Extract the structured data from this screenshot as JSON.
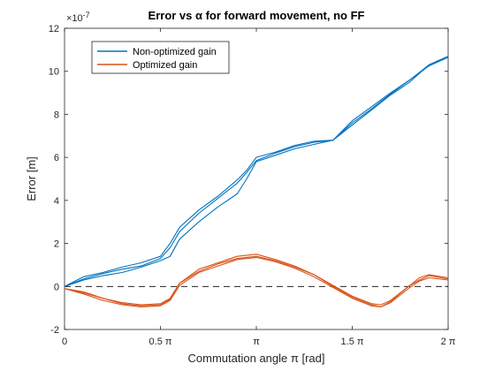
{
  "chart_data": {
    "type": "line",
    "title": "Error vs α for forward movement, no FF",
    "xlabel": "Commutation angle π [rad]",
    "ylabel": "Error [m]",
    "exponent_label": "×10",
    "exponent_power": "-7",
    "xlim": [
      0,
      2
    ],
    "ylim": [
      -2,
      12
    ],
    "xticks": [
      {
        "value": 0,
        "label": "0"
      },
      {
        "value": 0.5,
        "label": "0.5 π"
      },
      {
        "value": 1,
        "label": "π"
      },
      {
        "value": 1.5,
        "label": "1.5 π"
      },
      {
        "value": 2,
        "label": "2 π"
      }
    ],
    "yticks": [
      {
        "value": -2,
        "label": "-2"
      },
      {
        "value": 0,
        "label": "0"
      },
      {
        "value": 2,
        "label": "2"
      },
      {
        "value": 4,
        "label": "4"
      },
      {
        "value": 6,
        "label": "6"
      },
      {
        "value": 8,
        "label": "8"
      },
      {
        "value": 10,
        "label": "10"
      },
      {
        "value": 12,
        "label": "12"
      }
    ],
    "reference_line": {
      "y": 0,
      "style": "dashed",
      "color": "#000000"
    },
    "legend_position": "top-left",
    "series": [
      {
        "name": "Non-optimized gain",
        "color": "#0072BD",
        "x": [
          0,
          0.1,
          0.2,
          0.3,
          0.4,
          0.5,
          0.55,
          0.6,
          0.7,
          0.8,
          0.9,
          0.95,
          1.0,
          1.1,
          1.2,
          1.3,
          1.4,
          1.5,
          1.6,
          1.7,
          1.8,
          1.9,
          2.0
        ],
        "values": [
          0.0,
          0.4,
          0.6,
          0.8,
          1.0,
          1.3,
          1.9,
          2.6,
          3.4,
          4.1,
          4.8,
          5.3,
          5.9,
          6.2,
          6.5,
          6.7,
          6.8,
          7.6,
          8.3,
          9.0,
          9.6,
          10.3,
          10.7
        ],
        "traces": [
          {
            "name": "Non-optimized gain trace 1",
            "offsets": [
              0,
              0.05,
              0.05,
              0.1,
              0.1,
              0.1,
              0.1,
              0.15,
              0.15,
              0.1,
              0.15,
              0.1,
              0.1,
              0.05,
              0.05,
              0.05,
              0.0,
              0.1,
              0.05,
              0.0,
              0.0,
              0.0,
              0.0
            ]
          },
          {
            "name": "Non-optimized gain trace 2",
            "offsets": [
              0,
              -0.05,
              0.0,
              0.0,
              -0.05,
              0.0,
              -0.1,
              -0.05,
              0.0,
              0.0,
              0.0,
              0.0,
              -0.05,
              0.0,
              0.0,
              0.0,
              0.0,
              0.0,
              -0.05,
              -0.05,
              0.0,
              -0.05,
              -0.05
            ]
          },
          {
            "name": "Non-optimized gain trace 3",
            "offsets": [
              0,
              -0.1,
              -0.1,
              -0.15,
              -0.1,
              -0.1,
              -0.5,
              -0.4,
              -0.4,
              -0.4,
              -0.5,
              -0.3,
              -0.1,
              -0.1,
              -0.1,
              -0.1,
              0.0,
              -0.1,
              -0.1,
              -0.1,
              -0.1,
              0.0,
              0.0
            ]
          }
        ]
      },
      {
        "name": "Optimized gain",
        "color": "#D95319",
        "x": [
          0,
          0.1,
          0.2,
          0.3,
          0.4,
          0.5,
          0.55,
          0.6,
          0.7,
          0.8,
          0.9,
          1.0,
          1.1,
          1.2,
          1.3,
          1.4,
          1.5,
          1.6,
          1.65,
          1.7,
          1.8,
          1.85,
          1.9,
          2.0
        ],
        "values": [
          -0.1,
          -0.3,
          -0.6,
          -0.8,
          -0.9,
          -0.85,
          -0.6,
          0.1,
          0.7,
          1.0,
          1.3,
          1.4,
          1.2,
          0.9,
          0.5,
          0.0,
          -0.5,
          -0.85,
          -0.9,
          -0.7,
          0.0,
          0.3,
          0.45,
          0.35
        ],
        "traces": [
          {
            "name": "Optimized gain trace 1",
            "offsets": [
              0,
              0.05,
              0.05,
              0.05,
              0.05,
              0.05,
              0.05,
              0.05,
              0.1,
              0.1,
              0.1,
              0.1,
              0.05,
              0.05,
              0.05,
              0.05,
              0.05,
              0.05,
              0.05,
              0.05,
              0.05,
              0.1,
              0.1,
              0.05
            ]
          },
          {
            "name": "Optimized gain trace 2",
            "offsets": [
              0,
              -0.05,
              -0.05,
              -0.05,
              -0.05,
              -0.05,
              -0.05,
              -0.05,
              -0.05,
              -0.05,
              -0.05,
              -0.05,
              -0.05,
              -0.05,
              -0.05,
              -0.05,
              -0.05,
              -0.05,
              -0.05,
              -0.05,
              -0.05,
              -0.05,
              -0.05,
              -0.05
            ]
          },
          {
            "name": "Optimized gain trace 3",
            "offsets": [
              0,
              0.0,
              0.05,
              0.0,
              0.0,
              0.0,
              0.0,
              0.05,
              0.0,
              0.05,
              0.0,
              0.0,
              0.0,
              0.0,
              0.05,
              0.0,
              0.0,
              0.0,
              -0.05,
              0.0,
              0.05,
              0.0,
              0.05,
              0.0
            ]
          }
        ]
      }
    ]
  }
}
